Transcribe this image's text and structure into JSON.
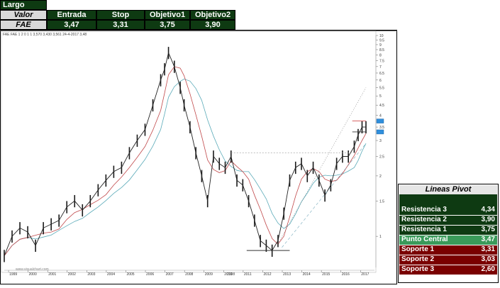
{
  "trade_table": {
    "title": "Largo",
    "headers": [
      "Valor",
      "Entrada",
      "Stop",
      "Objetivo1",
      "Objetivo2"
    ],
    "row": [
      "FAE",
      "3,47",
      "3,31",
      "3,75",
      "3,90"
    ]
  },
  "pivot_table": {
    "title": "Lineas Pivot",
    "rows": [
      {
        "label": "Resistencia 3",
        "value": "4,34",
        "kind": "resistance"
      },
      {
        "label": "Resistencia 2",
        "value": "3,90",
        "kind": "resistance"
      },
      {
        "label": "Resistencia 1",
        "value": "3,75",
        "kind": "resistance"
      },
      {
        "label": "Punto Central",
        "value": "3,47",
        "kind": "central"
      },
      {
        "label": "Soporte 1",
        "value": "3,31",
        "kind": "support"
      },
      {
        "label": "Soporte 2",
        "value": "3,03",
        "kind": "support"
      },
      {
        "label": "Soporte 3",
        "value": "2,60",
        "kind": "support"
      }
    ],
    "colors": {
      "resistance": "#0e3a12",
      "central": "#3a9a5a",
      "support": "#7a0000"
    }
  },
  "chart_data": {
    "type": "line",
    "y_scale": "log",
    "ylim": [
      0.7,
      10
    ],
    "y_ticks": [
      "1",
      "1.5",
      "2",
      "2.5",
      "3",
      "3.5",
      "4",
      "4.5",
      "5",
      "5.5",
      "6",
      "6.5",
      "7",
      "7.5",
      "8",
      "8.5",
      "9",
      "9.5",
      "10"
    ],
    "x_ticks": [
      "1999",
      "2000",
      "2001",
      "2002",
      "2003",
      "2004",
      "2005",
      "2006",
      "2007",
      "2008",
      "2009",
      "2010",
      "2011",
      "2012",
      "2013",
      "2014",
      "2015",
      "2016",
      "2017"
    ],
    "x_mid_label": "2008",
    "watermark": "www.visualchart.com",
    "header_info": "FAE  FAE  1 2 0 1 1  3,570  3,430  3,561  24-4-2017  3,48",
    "price_series": {
      "name": "FAE",
      "x": [
        1998.8,
        1999.2,
        1999.6,
        2000.0,
        2000.4,
        2000.8,
        2001.2,
        2001.6,
        2002.0,
        2002.4,
        2002.8,
        2003.2,
        2003.6,
        2004.0,
        2004.4,
        2004.8,
        2005.2,
        2005.6,
        2006.0,
        2006.4,
        2006.8,
        2007.0,
        2007.2,
        2007.5,
        2007.8,
        2008.0,
        2008.3,
        2008.6,
        2008.9,
        2009.2,
        2009.5,
        2009.8,
        2010.1,
        2010.4,
        2010.7,
        2011.0,
        2011.3,
        2011.6,
        2011.9,
        2012.2,
        2012.5,
        2012.8,
        2013.1,
        2013.4,
        2013.7,
        2014.0,
        2014.3,
        2014.6,
        2014.9,
        2015.2,
        2015.5,
        2015.8,
        2016.1,
        2016.4,
        2016.7,
        2016.9,
        2017.1,
        2017.3
      ],
      "y": [
        0.8,
        1.0,
        1.1,
        1.05,
        0.9,
        1.1,
        1.15,
        1.2,
        1.4,
        1.5,
        1.35,
        1.5,
        1.7,
        1.9,
        2.1,
        2.2,
        2.6,
        3.0,
        3.4,
        4.5,
        6.0,
        6.8,
        8.2,
        7.0,
        5.5,
        4.5,
        3.5,
        2.6,
        2.0,
        1.5,
        2.5,
        2.3,
        2.2,
        2.5,
        1.9,
        1.8,
        1.5,
        1.2,
        0.95,
        0.9,
        0.85,
        0.95,
        1.3,
        1.9,
        2.2,
        2.3,
        2.0,
        2.2,
        1.9,
        1.6,
        1.8,
        2.3,
        2.5,
        2.5,
        2.8,
        3.2,
        3.5,
        3.5
      ]
    },
    "annotations": {
      "resistance_dotted_level": 2.6,
      "support_level": 0.85,
      "marked_levels": [
        3.75,
        3.31
      ]
    }
  }
}
